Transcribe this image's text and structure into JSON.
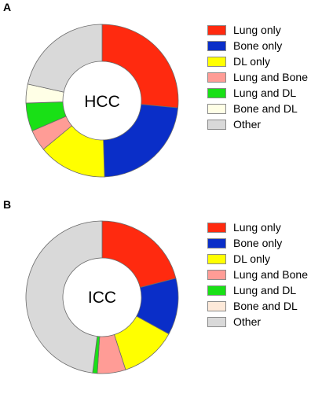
{
  "chart_data": [
    {
      "type": "donut",
      "panel_label": "A",
      "center_label": "HCC",
      "categories": [
        "Lung only",
        "Bone only",
        "DL only",
        "Lung and Bone",
        "Lung and DL",
        "Bone and DL",
        "Other"
      ],
      "values": [
        26.5,
        23.0,
        14.5,
        4.5,
        6.0,
        4.0,
        21.5
      ],
      "colors": [
        "#ff2a0f",
        "#0a2ec8",
        "#ffff00",
        "#ff9c96",
        "#19e016",
        "#ffffe6",
        "#d9d9d9"
      ]
    },
    {
      "type": "donut",
      "panel_label": "B",
      "center_label": "ICC",
      "categories": [
        "Lung only",
        "Bone only",
        "DL only",
        "Lung and Bone",
        "Lung and DL",
        "Bone and DL",
        "Other"
      ],
      "values": [
        21.0,
        12.0,
        12.0,
        6.0,
        1.0,
        0.0,
        48.0
      ],
      "colors": [
        "#ff2a0f",
        "#0a2ec8",
        "#ffff00",
        "#ff9c96",
        "#19e016",
        "#fde9d9",
        "#d9d9d9"
      ]
    }
  ]
}
